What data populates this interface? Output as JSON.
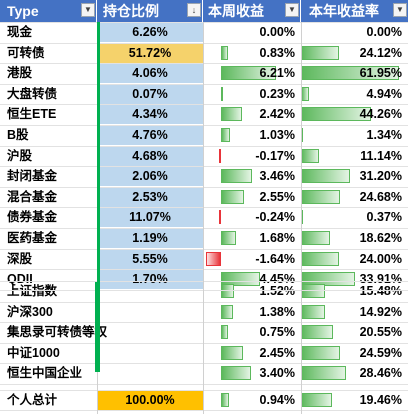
{
  "headers": [
    "Type",
    "持仓比例",
    "本周收益",
    "本年收益率"
  ],
  "colors": {
    "header": "#4472c4",
    "pos_fill": "#5cb85c",
    "neg_fill": "#e8343a",
    "alloc_blue": "#bdd7ee",
    "alloc_gold": "#f5d26b",
    "alloc_total": "#ffc000"
  },
  "rows": [
    {
      "name": "现金",
      "alloc": "6.26%",
      "week": "0.00%",
      "year": "0.00%",
      "alloc_frac": 0.0626,
      "week_val": 0.0,
      "year_val": 0.0
    },
    {
      "name": "可转债",
      "alloc": "51.72%",
      "week": "0.83%",
      "year": "24.12%",
      "alloc_frac": 0.5172,
      "week_val": 0.83,
      "year_val": 24.12
    },
    {
      "name": "港股",
      "alloc": "4.06%",
      "week": "6.21%",
      "year": "61.95%",
      "alloc_frac": 0.0406,
      "week_val": 6.21,
      "year_val": 61.95
    },
    {
      "name": "大盘转债",
      "alloc": "0.07%",
      "week": "0.23%",
      "year": "4.94%",
      "alloc_frac": 0.0007,
      "week_val": 0.23,
      "year_val": 4.94
    },
    {
      "name": "恒生ETE",
      "alloc": "4.34%",
      "week": "2.42%",
      "year": "44.26%",
      "alloc_frac": 0.0434,
      "week_val": 2.42,
      "year_val": 44.26
    },
    {
      "name": "B股",
      "alloc": "4.76%",
      "week": "1.03%",
      "year": "1.34%",
      "alloc_frac": 0.0476,
      "week_val": 1.03,
      "year_val": 1.34
    },
    {
      "name": "沪股",
      "alloc": "4.68%",
      "week": "-0.17%",
      "year": "11.14%",
      "alloc_frac": 0.0468,
      "week_val": -0.17,
      "year_val": 11.14
    },
    {
      "name": "封闭基金",
      "alloc": "2.06%",
      "week": "3.46%",
      "year": "31.20%",
      "alloc_frac": 0.0206,
      "week_val": 3.46,
      "year_val": 31.2
    },
    {
      "name": "混合基金",
      "alloc": "2.53%",
      "week": "2.55%",
      "year": "24.68%",
      "alloc_frac": 0.0253,
      "week_val": 2.55,
      "year_val": 24.68
    },
    {
      "name": "债券基金",
      "alloc": "11.07%",
      "week": "-0.24%",
      "year": "0.37%",
      "alloc_frac": 0.1107,
      "week_val": -0.24,
      "year_val": 0.37
    },
    {
      "name": "医药基金",
      "alloc": "1.19%",
      "week": "1.68%",
      "year": "18.62%",
      "alloc_frac": 0.0119,
      "week_val": 1.68,
      "year_val": 18.62
    },
    {
      "name": "深股",
      "alloc": "5.55%",
      "week": "-1.64%",
      "year": "24.00%",
      "alloc_frac": 0.0555,
      "week_val": -1.64,
      "year_val": 24.0
    },
    {
      "name": "QDII",
      "alloc": "1.70%",
      "week": "4.45%",
      "year": "33.91%",
      "alloc_frac": 0.017,
      "week_val": 4.45,
      "year_val": 33.91
    }
  ],
  "index_rows": [
    {
      "name": "上证指数",
      "week": "1.52%",
      "year": "15.48%",
      "week_val": 1.52,
      "year_val": 15.48
    },
    {
      "name": "沪深300",
      "week": "1.38%",
      "year": "14.92%",
      "week_val": 1.38,
      "year_val": 14.92
    },
    {
      "name": "集思录可转债等权",
      "week": "0.75%",
      "year": "20.55%",
      "week_val": 0.75,
      "year_val": 20.55
    },
    {
      "name": "中证1000",
      "week": "2.45%",
      "year": "24.59%",
      "week_val": 2.45,
      "year_val": 24.59
    },
    {
      "name": "恒生中国企业",
      "week": "3.40%",
      "year": "28.46%",
      "week_val": 3.4,
      "year_val": 28.46
    }
  ],
  "total": {
    "name": "个人总计",
    "alloc": "100.00%",
    "week": "0.94%",
    "year": "19.46%",
    "week_val": 0.94,
    "year_val": 19.46
  }
}
